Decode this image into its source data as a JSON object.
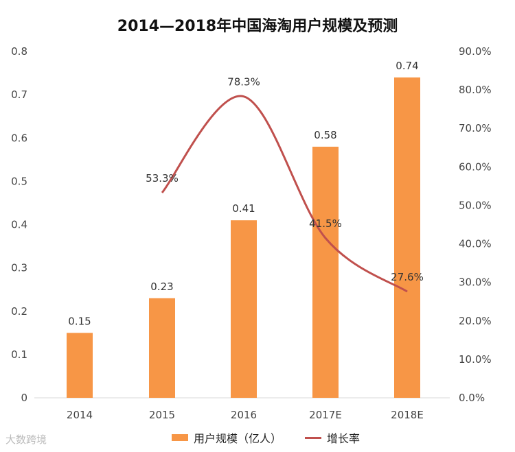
{
  "chart_data": {
    "type": "bar+line",
    "title": "2014—2018年中国海淘用户规模及预测",
    "categories": [
      "2014",
      "2015",
      "2016",
      "2017E",
      "2018E"
    ],
    "series": [
      {
        "name": "用户规模（亿人）",
        "type": "bar",
        "axis": "left",
        "values": [
          0.15,
          0.23,
          0.41,
          0.58,
          0.74
        ],
        "labels": [
          "0.15",
          "0.23",
          "0.41",
          "0.58",
          "0.74"
        ],
        "color": "#F79646"
      },
      {
        "name": "增长率",
        "type": "line",
        "axis": "right",
        "values": [
          null,
          53.3,
          78.3,
          41.5,
          27.6
        ],
        "labels": [
          "",
          "53.3%",
          "78.3%",
          "41.5%",
          "27.6%"
        ],
        "color": "#C0504D",
        "smooth": true
      }
    ],
    "left_axis": {
      "range": [
        0,
        0.8
      ],
      "ticks": [
        "0",
        "0.1",
        "0.2",
        "0.3",
        "0.4",
        "0.5",
        "0.6",
        "0.7",
        "0.8"
      ]
    },
    "right_axis": {
      "range": [
        0,
        90
      ],
      "ticks": [
        "0.0%",
        "10.0%",
        "20.0%",
        "30.0%",
        "40.0%",
        "50.0%",
        "60.0%",
        "70.0%",
        "80.0%",
        "90.0%"
      ]
    },
    "grid": false,
    "legend": "bottom"
  },
  "watermark": "大数跨境"
}
